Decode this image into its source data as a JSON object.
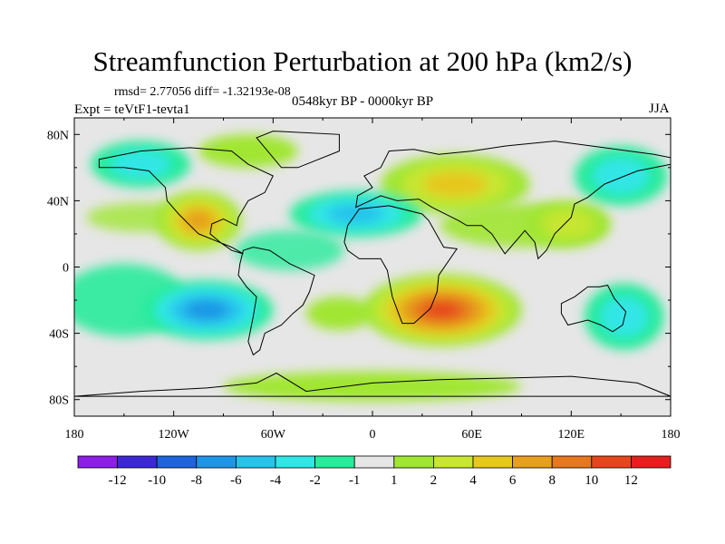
{
  "title": "Streamfunction Perturbation at 200 hPa (km2/s)",
  "stats": "rmsd= 2.77056 diff= -1.32193e-08",
  "expt": "Expt = teVtF1-tevta1",
  "period": "0548kyr BP - 0000kyr BP",
  "season": "JJA",
  "axes": {
    "lat_ticks": [
      {
        "value": 80,
        "label": "80N"
      },
      {
        "value": 40,
        "label": "40N"
      },
      {
        "value": 0,
        "label": "0"
      },
      {
        "value": -40,
        "label": "40S"
      },
      {
        "value": -80,
        "label": "80S"
      }
    ],
    "lon_ticks": [
      {
        "value": -180,
        "label": "180"
      },
      {
        "value": -120,
        "label": "120W"
      },
      {
        "value": -60,
        "label": "60W"
      },
      {
        "value": 0,
        "label": "0"
      },
      {
        "value": 60,
        "label": "60E"
      },
      {
        "value": 120,
        "label": "120E"
      },
      {
        "value": 180,
        "label": "180"
      }
    ]
  },
  "colorbar": {
    "colors": [
      "#8c1ee6",
      "#3c28d2",
      "#1e64dc",
      "#1e96e6",
      "#28c3eb",
      "#32e6e6",
      "#28eb9b",
      "#e6e6e6",
      "#a0e632",
      "#c8e632",
      "#e6c81e",
      "#e6a01e",
      "#e6781e",
      "#e6461e",
      "#e61e1e"
    ],
    "labels": [
      "-12",
      "-10",
      "-8",
      "-6",
      "-4",
      "-2",
      "-1",
      "1",
      "2",
      "4",
      "6",
      "8",
      "10",
      "12"
    ]
  },
  "anomalies": [
    {
      "lon": 42,
      "lat": -26,
      "rx": 48,
      "ry": 22,
      "value": 12
    },
    {
      "lon": 50,
      "lat": 50,
      "rx": 45,
      "ry": 18,
      "value": 6
    },
    {
      "lon": -105,
      "lat": 28,
      "rx": 26,
      "ry": 18,
      "value": 7
    },
    {
      "lon": -100,
      "lat": -26,
      "rx": 40,
      "ry": 18,
      "value": -7
    },
    {
      "lon": -10,
      "lat": 32,
      "rx": 40,
      "ry": 14,
      "value": -5
    },
    {
      "lon": 150,
      "lat": 55,
      "rx": 28,
      "ry": 18,
      "value": -4
    },
    {
      "lon": 152,
      "lat": -30,
      "rx": 24,
      "ry": 20,
      "value": -4
    },
    {
      "lon": -140,
      "lat": 62,
      "rx": 30,
      "ry": 14,
      "value": -3
    },
    {
      "lon": 118,
      "lat": 26,
      "rx": 26,
      "ry": 14,
      "value": 3
    },
    {
      "lon": 0,
      "lat": -72,
      "rx": 90,
      "ry": 9,
      "value": 2
    },
    {
      "lon": -20,
      "lat": -28,
      "rx": 20,
      "ry": 10,
      "value": 2
    },
    {
      "lon": -75,
      "lat": 70,
      "rx": 30,
      "ry": 10,
      "value": 2
    }
  ]
}
